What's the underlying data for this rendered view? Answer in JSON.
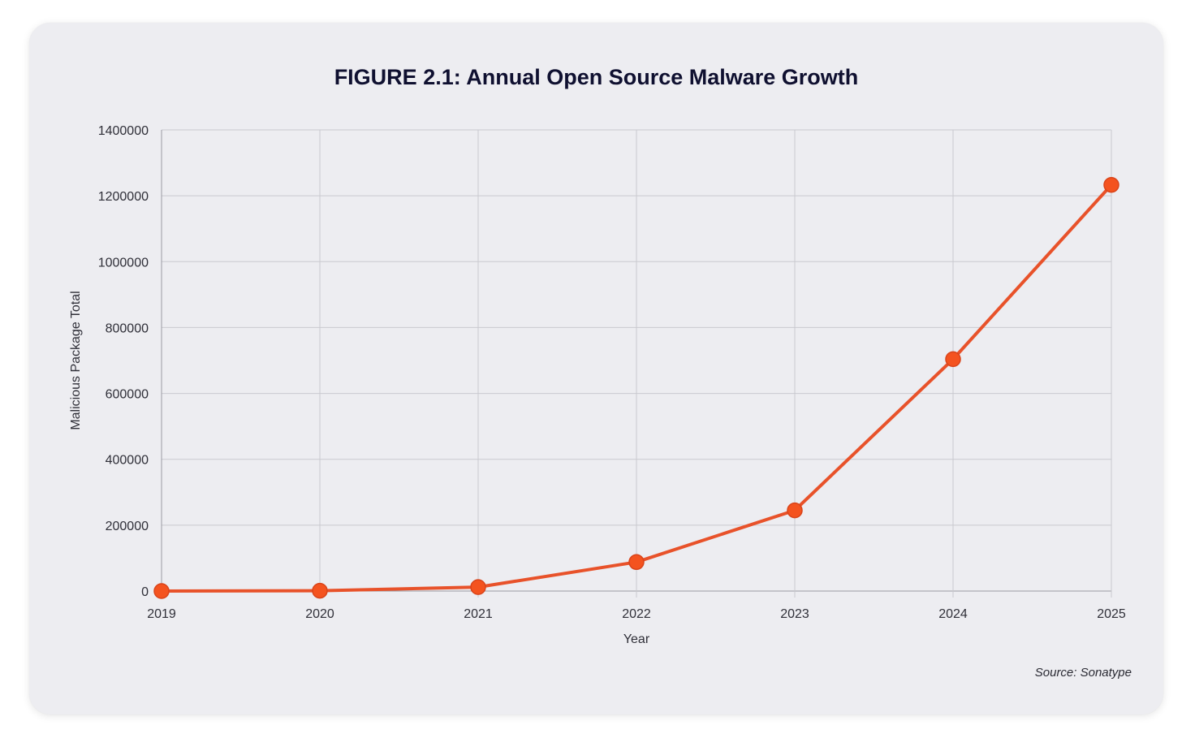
{
  "chart_data": {
    "type": "line",
    "title": "FIGURE 2.1: Annual Open Source Malware Growth",
    "xlabel": "Year",
    "ylabel": "Malicious Package Total",
    "x": [
      "2019",
      "2020",
      "2021",
      "2022",
      "2023",
      "2024",
      "2025"
    ],
    "series": [
      {
        "values": [
          0,
          1000,
          12000,
          88000,
          245000,
          704000,
          1233000
        ]
      }
    ],
    "ylim": [
      0,
      1400000
    ],
    "yticks": [
      "0",
      "200000",
      "400000",
      "600000",
      "800000",
      "1000000",
      "1200000",
      "1400000"
    ],
    "grid": true,
    "line_color": "#e8522a",
    "point_color": "#f4531f",
    "source": "Source: Sonatype"
  }
}
